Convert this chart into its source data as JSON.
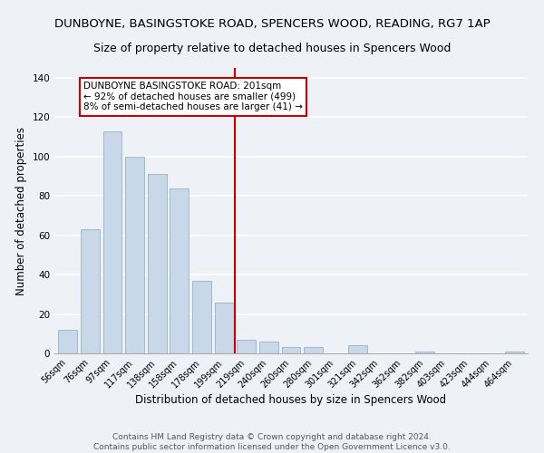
{
  "title": "DUNBOYNE, BASINGSTOKE ROAD, SPENCERS WOOD, READING, RG7 1AP",
  "subtitle": "Size of property relative to detached houses in Spencers Wood",
  "xlabel": "Distribution of detached houses by size in Spencers Wood",
  "ylabel": "Number of detached properties",
  "bar_color": "#c8d8e8",
  "bar_edge_color": "#a0b8cc",
  "categories": [
    "56sqm",
    "76sqm",
    "97sqm",
    "117sqm",
    "138sqm",
    "158sqm",
    "178sqm",
    "199sqm",
    "219sqm",
    "240sqm",
    "260sqm",
    "280sqm",
    "301sqm",
    "321sqm",
    "342sqm",
    "362sqm",
    "382sqm",
    "403sqm",
    "423sqm",
    "444sqm",
    "464sqm"
  ],
  "values": [
    12,
    63,
    113,
    100,
    91,
    84,
    37,
    26,
    7,
    6,
    3,
    3,
    0,
    4,
    0,
    0,
    1,
    0,
    0,
    0,
    1
  ],
  "ylim": [
    0,
    145
  ],
  "yticks": [
    0,
    20,
    40,
    60,
    80,
    100,
    120,
    140
  ],
  "vline_x": 7.5,
  "vline_color": "#cc0000",
  "annotation_title": "DUNBOYNE BASINGSTOKE ROAD: 201sqm",
  "annotation_line1": "← 92% of detached houses are smaller (499)",
  "annotation_line2": "8% of semi-detached houses are larger (41) →",
  "footer1": "Contains HM Land Registry data © Crown copyright and database right 2024.",
  "footer2": "Contains public sector information licensed under the Open Government Licence v3.0.",
  "background_color": "#eef2f7",
  "grid_color": "#ffffff",
  "title_fontsize": 9.5,
  "subtitle_fontsize": 9.0,
  "axis_label_fontsize": 8.5,
  "tick_fontsize": 7.0,
  "annot_fontsize": 7.5,
  "footer_fontsize": 6.5
}
